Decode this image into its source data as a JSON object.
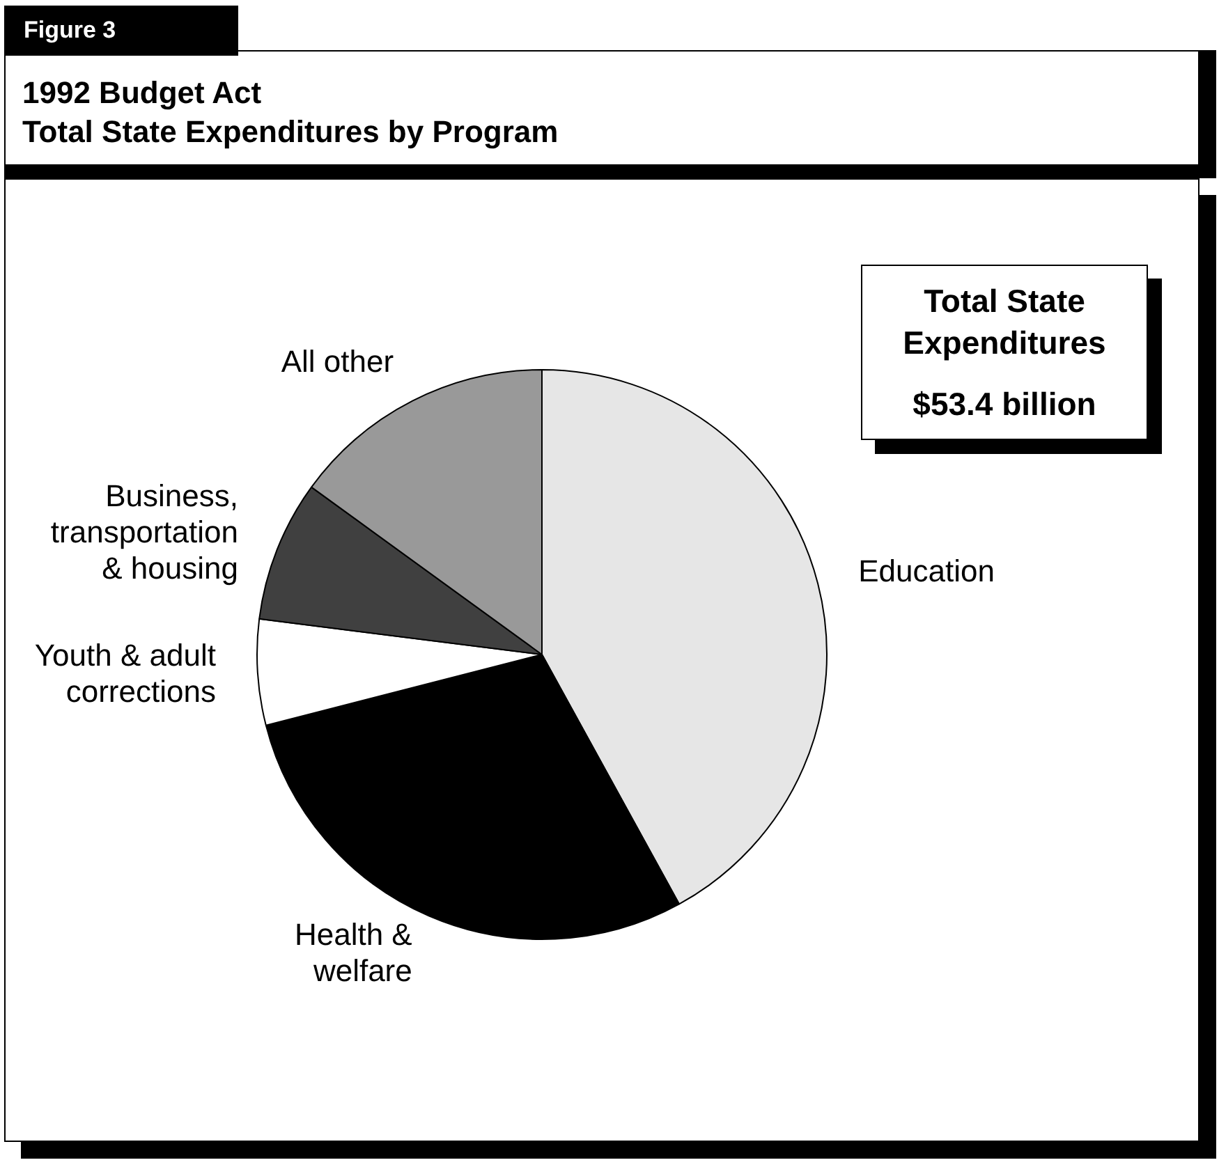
{
  "chart_data": {
    "type": "pie",
    "title": "1992 Budget Act\nTotal State Expenditures by Program",
    "subtitle": "Figure 3",
    "categories": [
      "Education",
      "Health & welfare",
      "Youth & adult corrections",
      "Business, transportation & housing",
      "All other"
    ],
    "values": [
      42,
      29,
      6,
      8,
      15
    ],
    "colors": [
      "#e6e6e6",
      "#000000",
      "#ffffff",
      "#404040",
      "#999999"
    ],
    "annotations": [
      "Total State Expenditures",
      "$53.4 billion"
    ],
    "legend": false
  }
}
